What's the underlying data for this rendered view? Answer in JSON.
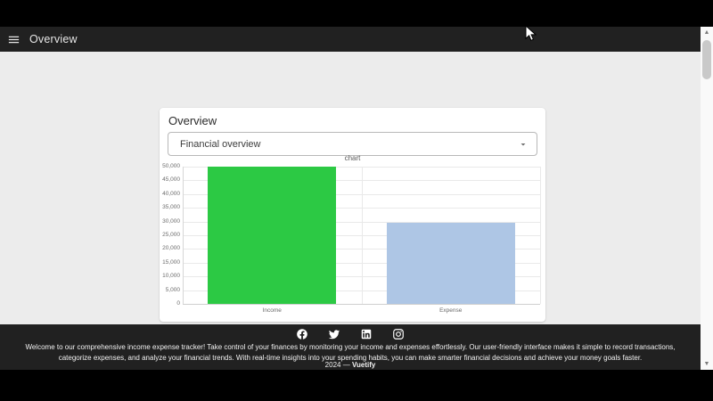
{
  "app_bar": {
    "title": "Overview"
  },
  "card": {
    "title": "Overview",
    "select": {
      "value": "Financial overview"
    }
  },
  "chart_data": {
    "type": "bar",
    "title": "chart",
    "categories": [
      "Income",
      "Expense"
    ],
    "values": [
      50000,
      29500
    ],
    "bar_colors": [
      "#2cc944",
      "#aec6e5"
    ],
    "xlabel": "",
    "ylabel": "",
    "ylim": [
      0,
      50000
    ],
    "ytick_step": 5000,
    "ytick_labels_top_down": [
      "50,000",
      "45,000",
      "40,000",
      "35,000",
      "30,000",
      "25,000",
      "20,000",
      "15,000",
      "10,000",
      "5,000",
      "0"
    ],
    "grid": true,
    "legend_position": "none"
  },
  "footer": {
    "social_icons": [
      "facebook-icon",
      "twitter-icon",
      "linkedin-icon",
      "instagram-icon"
    ],
    "description": "Welcome to our comprehensive income expense tracker! Take control of your finances by monitoring your income and expenses effortlessly. Our user-friendly interface makes it simple to record transactions, categorize expenses, and analyze your financial trends. With real-time insights into your spending habits, you can make smarter financial decisions and achieve your money goals faster.",
    "copyright_prefix": "2024 —",
    "copyright_brand": "Vuetify"
  },
  "scrollbar": {
    "up_glyph": "▲",
    "down_glyph": "▼"
  },
  "colors": {
    "app_bar_bg": "#212121",
    "footer_bg": "#212121",
    "page_bg": "#ececec",
    "card_bg": "#ffffff",
    "income_bar": "#2cc944",
    "expense_bar": "#aec6e5"
  }
}
